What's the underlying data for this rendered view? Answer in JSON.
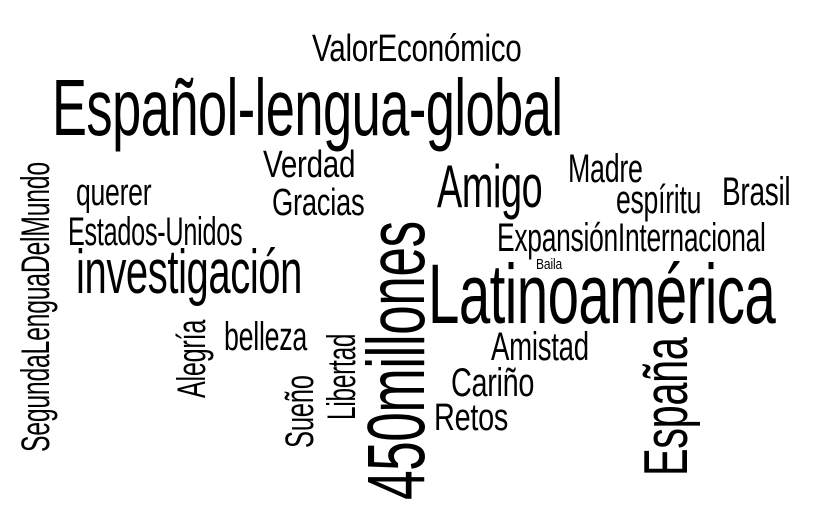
{
  "text_color": "#000000",
  "background_color": "#ffffff",
  "words": {
    "valor_economico": "ValorEconómico",
    "espanol_lengua_global": "Español-lengua-global",
    "segunda_lengua": "SegundaLenguaDelMundo",
    "verdad": "Verdad",
    "gracias": "Gracias",
    "querer": "querer",
    "estados_unidos": "Estados-Unidos",
    "investigacion": "investigación",
    "alegria": "Alegría",
    "belleza": "belleza",
    "sueno": "Sueño",
    "libertad": "Libertad",
    "millones": "450millones",
    "amigo": "Amigo",
    "madre": "Madre",
    "espiritu": "espíritu",
    "brasil": "Brasil",
    "expansion": "ExpansiónInternacional",
    "baila": "Baila",
    "latinoamerica": "Latinoamérica",
    "amistad": "Amistad",
    "carino": "Cariño",
    "retos": "Retos",
    "espana": "España"
  }
}
